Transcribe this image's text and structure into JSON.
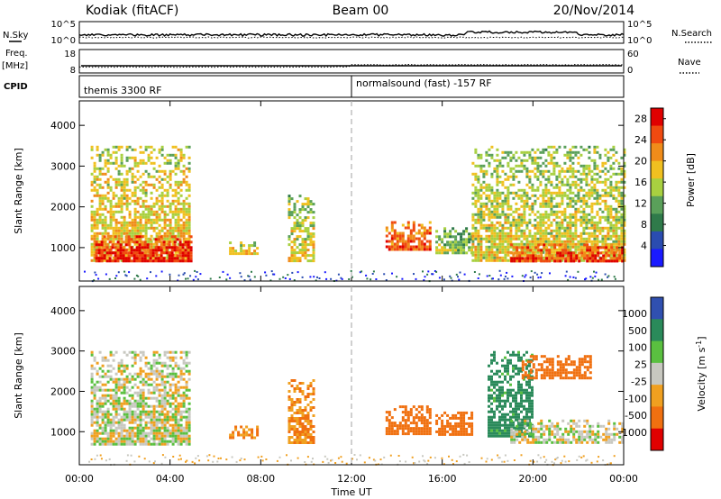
{
  "header": {
    "station": "Kodiak (fitACF)",
    "beam": "Beam 00",
    "date": "20/Nov/2014"
  },
  "left_labels": {
    "nsky": "N.Sky",
    "freq": "Freq.",
    "freq_unit": "[MHz]",
    "cpid": "CPID"
  },
  "right_labels": {
    "nsearch": "N.Search",
    "nave": "Nave"
  },
  "cpid_programs": [
    {
      "label": "themis 3300 RF",
      "start_hour": 0
    },
    {
      "label": "normalsound (fast) -157 RF",
      "start_hour": 12
    }
  ],
  "noise_axis": {
    "top_tick": "10^5",
    "bottom_tick": "10^0"
  },
  "freq_axis": {
    "top_tick": "18",
    "bottom_tick": "8"
  },
  "nave_axis": {
    "top_tick": "60",
    "bottom_tick": "0"
  },
  "colors": {
    "power": [
      "#1a1aff",
      "#2a4cb0",
      "#2f7a4a",
      "#5aa05a",
      "#a8d040",
      "#f0c020",
      "#f08c1a",
      "#f04a10",
      "#e00000"
    ],
    "velocity": [
      "#3050b0",
      "#2a8a5a",
      "#5ac040",
      "#c8c8c0",
      "#f0a020",
      "#f07010",
      "#e00000"
    ],
    "dashed_line": "#b0b0b0"
  },
  "chart_data": [
    {
      "type": "heatmap",
      "title": "Power",
      "ylabel": "Slant Range [km]",
      "xlabel": "Time UT",
      "x_ticks": [
        "00:00",
        "04:00",
        "08:00",
        "12:00",
        "16:00",
        "20:00",
        "00:00"
      ],
      "x_tick_hours": [
        0,
        4,
        8,
        12,
        16,
        20,
        24
      ],
      "y_ticks": [
        1000,
        2000,
        3000,
        4000
      ],
      "ylim": [
        180,
        4600
      ],
      "xlim_hours": [
        0,
        24
      ],
      "colorbar": {
        "label": "Power [dB]",
        "ticks": [
          "4",
          "8",
          "12",
          "16",
          "20",
          "24",
          "28"
        ],
        "range": [
          0,
          30
        ]
      },
      "regions": [
        {
          "t0": 0.5,
          "t1": 4.9,
          "r0": 700,
          "r1": 3500,
          "level": 16
        },
        {
          "t0": 0.7,
          "t1": 4.9,
          "r0": 700,
          "r1": 1300,
          "level": 26
        },
        {
          "t0": 6.6,
          "t1": 7.8,
          "r0": 850,
          "r1": 1150,
          "level": 16
        },
        {
          "t0": 9.2,
          "t1": 10.3,
          "r0": 700,
          "r1": 2300,
          "level": 14
        },
        {
          "t0": 13.5,
          "t1": 15.5,
          "r0": 950,
          "r1": 1650,
          "level": 22
        },
        {
          "t0": 15.7,
          "t1": 17.3,
          "r0": 900,
          "r1": 1500,
          "level": 10
        },
        {
          "t0": 17.3,
          "t1": 24,
          "r0": 700,
          "r1": 3500,
          "level": 14
        },
        {
          "t0": 19.0,
          "t1": 24,
          "r0": 700,
          "r1": 1100,
          "level": 24
        }
      ]
    },
    {
      "type": "heatmap",
      "title": "Velocity",
      "ylabel": "Slant Range [km]",
      "xlabel": "Time UT",
      "x_ticks": [
        "00:00",
        "04:00",
        "08:00",
        "12:00",
        "16:00",
        "20:00",
        "00:00"
      ],
      "x_tick_hours": [
        0,
        4,
        8,
        12,
        16,
        20,
        24
      ],
      "y_ticks": [
        1000,
        2000,
        3000,
        4000
      ],
      "ylim": [
        180,
        4600
      ],
      "xlim_hours": [
        0,
        24
      ],
      "colorbar": {
        "label": "Velocity [m s^-1]",
        "ticks": [
          "1000",
          "500",
          "100",
          "25",
          "-25",
          "-100",
          "-500",
          "-1000"
        ]
      },
      "regions": [
        {
          "t0": 0.5,
          "t1": 4.9,
          "r0": 700,
          "r1": 3000,
          "velocity": 0
        },
        {
          "t0": 6.6,
          "t1": 7.8,
          "r0": 850,
          "r1": 1150,
          "velocity": -100
        },
        {
          "t0": 9.2,
          "t1": 10.3,
          "r0": 700,
          "r1": 2300,
          "velocity": -100
        },
        {
          "t0": 13.5,
          "t1": 15.5,
          "r0": 950,
          "r1": 1650,
          "velocity": -300
        },
        {
          "t0": 15.7,
          "t1": 17.3,
          "r0": 900,
          "r1": 1500,
          "velocity": -300
        },
        {
          "t0": 18.0,
          "t1": 20.0,
          "r0": 900,
          "r1": 3000,
          "velocity": 150
        },
        {
          "t0": 19.5,
          "t1": 22.5,
          "r0": 2300,
          "r1": 2900,
          "velocity": -400
        },
        {
          "t0": 19.0,
          "t1": 24,
          "r0": 700,
          "r1": 1300,
          "velocity": 0
        }
      ]
    }
  ]
}
